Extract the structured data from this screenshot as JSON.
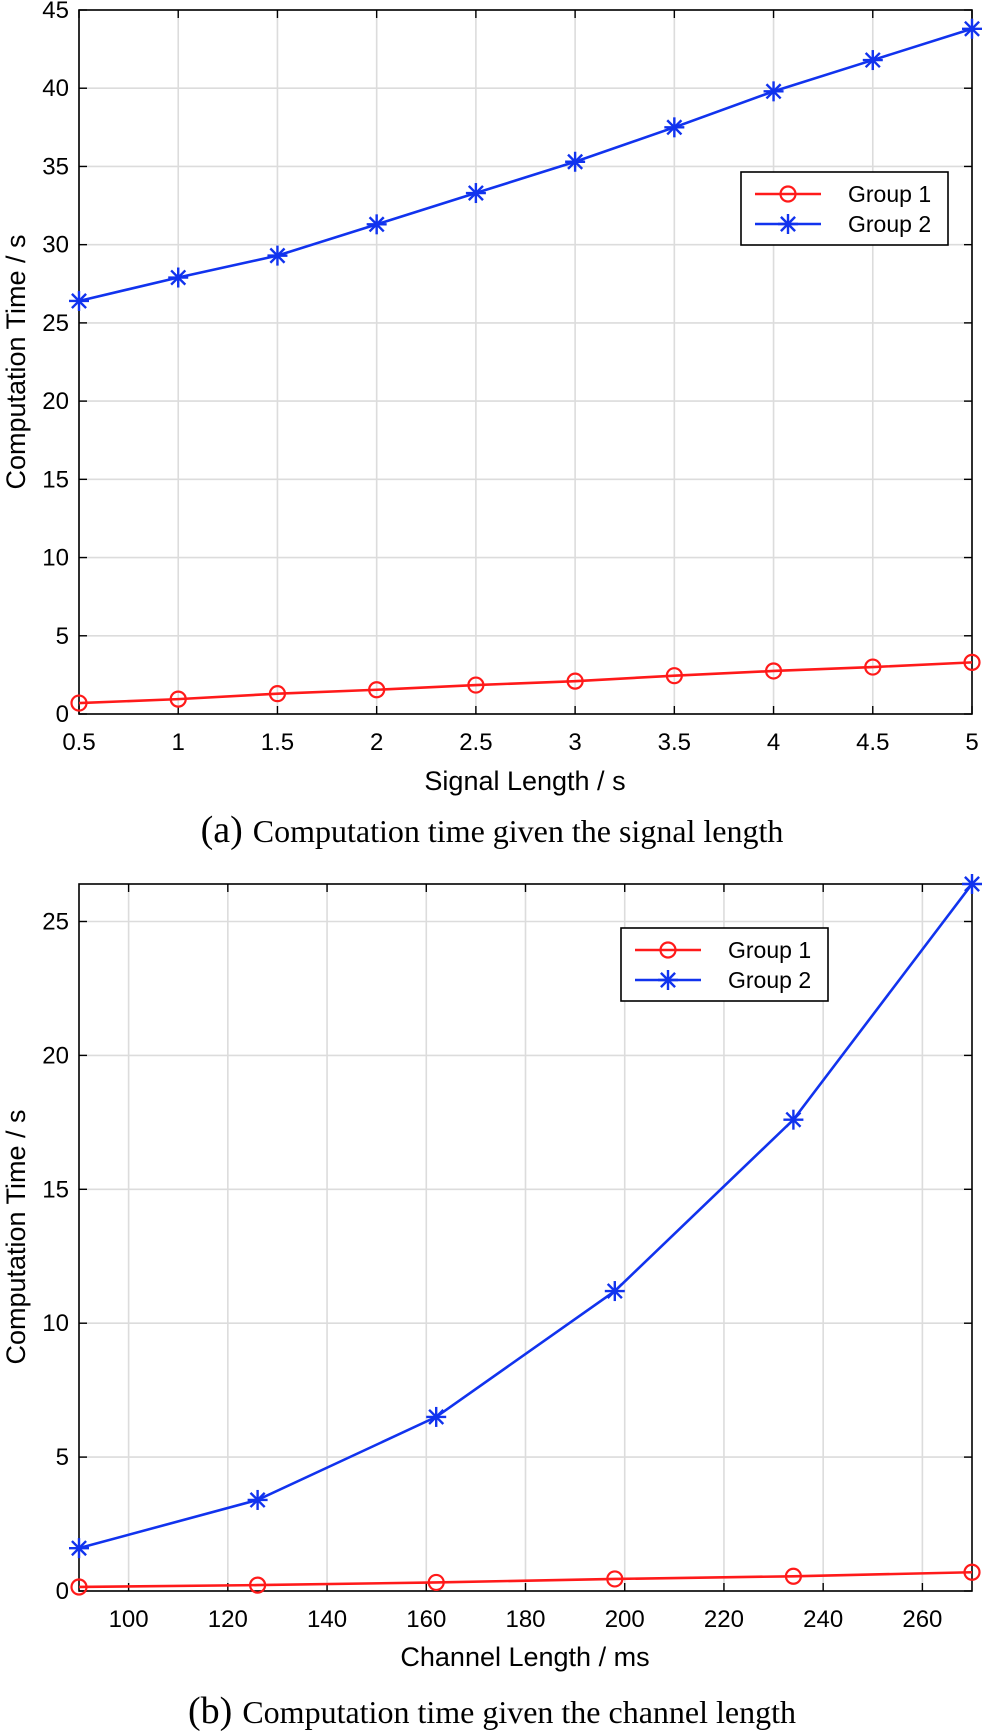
{
  "chart_data": [
    {
      "type": "line",
      "xlabel": "Signal Length / s",
      "ylabel": "Computation Time / s",
      "xlim": [
        0.5,
        5
      ],
      "ylim": [
        0,
        45
      ],
      "grid": true,
      "legend_position": "top-right",
      "x": [
        0.5,
        1,
        1.5,
        2,
        2.5,
        3,
        3.5,
        4,
        4.5,
        5
      ],
      "xticks": [
        0.5,
        1,
        1.5,
        2,
        2.5,
        3,
        3.5,
        4,
        4.5,
        5
      ],
      "xtick_labels": [
        "0.5",
        "1",
        "1.5",
        "2",
        "2.5",
        "3",
        "3.5",
        "4",
        "4.5",
        "5"
      ],
      "yticks": [
        0,
        5,
        10,
        15,
        20,
        25,
        30,
        35,
        40,
        45
      ],
      "ytick_labels": [
        "0",
        "5",
        "10",
        "15",
        "20",
        "25",
        "30",
        "35",
        "40",
        "45"
      ],
      "series": [
        {
          "name": "Group 1",
          "color": "#ff1a1a",
          "marker": "circle",
          "values": [
            0.7,
            0.95,
            1.3,
            1.55,
            1.85,
            2.1,
            2.45,
            2.75,
            3.0,
            3.3
          ]
        },
        {
          "name": "Group 2",
          "color": "#1133ee",
          "marker": "asterisk",
          "values": [
            26.4,
            27.9,
            29.3,
            31.3,
            33.3,
            35.3,
            37.5,
            39.8,
            41.8,
            43.8
          ]
        }
      ],
      "caption_label": "(a)",
      "caption_text": "Computation time given the signal length"
    },
    {
      "type": "line",
      "xlabel": "Channel Length / ms",
      "ylabel": "Computation Time / s",
      "xlim": [
        90,
        270
      ],
      "ylim": [
        0,
        26.4
      ],
      "grid": true,
      "legend_position": "top-right",
      "x": [
        90,
        126,
        162,
        198,
        234,
        270
      ],
      "xticks": [
        100,
        120,
        140,
        160,
        180,
        200,
        220,
        240,
        260
      ],
      "xtick_labels": [
        "100",
        "120",
        "140",
        "160",
        "180",
        "200",
        "220",
        "240",
        "260"
      ],
      "yticks": [
        0,
        5,
        10,
        15,
        20,
        25
      ],
      "ytick_labels": [
        "0",
        "5",
        "10",
        "15",
        "20",
        "25"
      ],
      "series": [
        {
          "name": "Group 1",
          "color": "#ff1a1a",
          "marker": "circle",
          "values": [
            0.15,
            0.22,
            0.32,
            0.45,
            0.55,
            0.7
          ]
        },
        {
          "name": "Group 2",
          "color": "#1133ee",
          "marker": "asterisk",
          "values": [
            1.6,
            3.4,
            6.5,
            11.2,
            17.6,
            26.4
          ]
        }
      ],
      "caption_label": "(b)",
      "caption_text": "Computation time given the channel length"
    }
  ]
}
